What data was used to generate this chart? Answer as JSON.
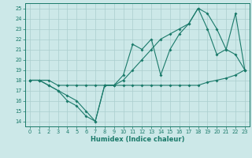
{
  "xlabel": "Humidex (Indice chaleur)",
  "bg_color": "#cce8e8",
  "grid_color": "#aacece",
  "line_color": "#1a7a6a",
  "xlim": [
    -0.5,
    23.5
  ],
  "ylim": [
    13.5,
    25.5
  ],
  "xticks": [
    0,
    1,
    2,
    3,
    4,
    5,
    6,
    7,
    8,
    9,
    10,
    11,
    12,
    13,
    14,
    15,
    16,
    17,
    18,
    19,
    20,
    21,
    22,
    23
  ],
  "yticks": [
    14,
    15,
    16,
    17,
    18,
    19,
    20,
    21,
    22,
    23,
    24,
    25
  ],
  "line1_x": [
    0,
    1,
    2,
    3,
    4,
    5,
    6,
    7,
    8,
    9,
    10,
    11,
    12,
    13,
    14,
    15,
    16,
    17,
    18,
    19,
    20,
    21,
    22,
    23
  ],
  "line1_y": [
    18.0,
    18.0,
    17.5,
    17.0,
    16.5,
    16.0,
    15.0,
    14.0,
    17.5,
    17.5,
    18.5,
    21.5,
    21.0,
    22.0,
    18.5,
    21.0,
    22.5,
    23.5,
    25.0,
    23.0,
    20.5,
    21.0,
    24.5,
    19.0
  ],
  "line2_x": [
    0,
    1,
    2,
    3,
    4,
    5,
    6,
    7,
    8,
    9,
    10,
    11,
    12,
    13,
    14,
    15,
    16,
    17,
    18,
    19,
    20,
    21,
    22,
    23
  ],
  "line2_y": [
    18.0,
    18.0,
    17.5,
    17.0,
    16.0,
    15.5,
    14.5,
    14.0,
    17.5,
    17.5,
    18.0,
    19.0,
    20.0,
    21.0,
    22.0,
    22.5,
    23.0,
    23.5,
    25.0,
    24.5,
    23.0,
    21.0,
    20.5,
    19.0
  ],
  "line3_x": [
    0,
    1,
    2,
    3,
    4,
    5,
    6,
    7,
    8,
    9,
    10,
    11,
    12,
    13,
    14,
    15,
    16,
    17,
    18,
    19,
    20,
    21,
    22,
    23
  ],
  "line3_y": [
    18.0,
    18.0,
    18.0,
    17.5,
    17.5,
    17.5,
    17.5,
    17.5,
    17.5,
    17.5,
    17.5,
    17.5,
    17.5,
    17.5,
    17.5,
    17.5,
    17.5,
    17.5,
    17.5,
    17.8,
    18.0,
    18.2,
    18.5,
    19.0
  ]
}
